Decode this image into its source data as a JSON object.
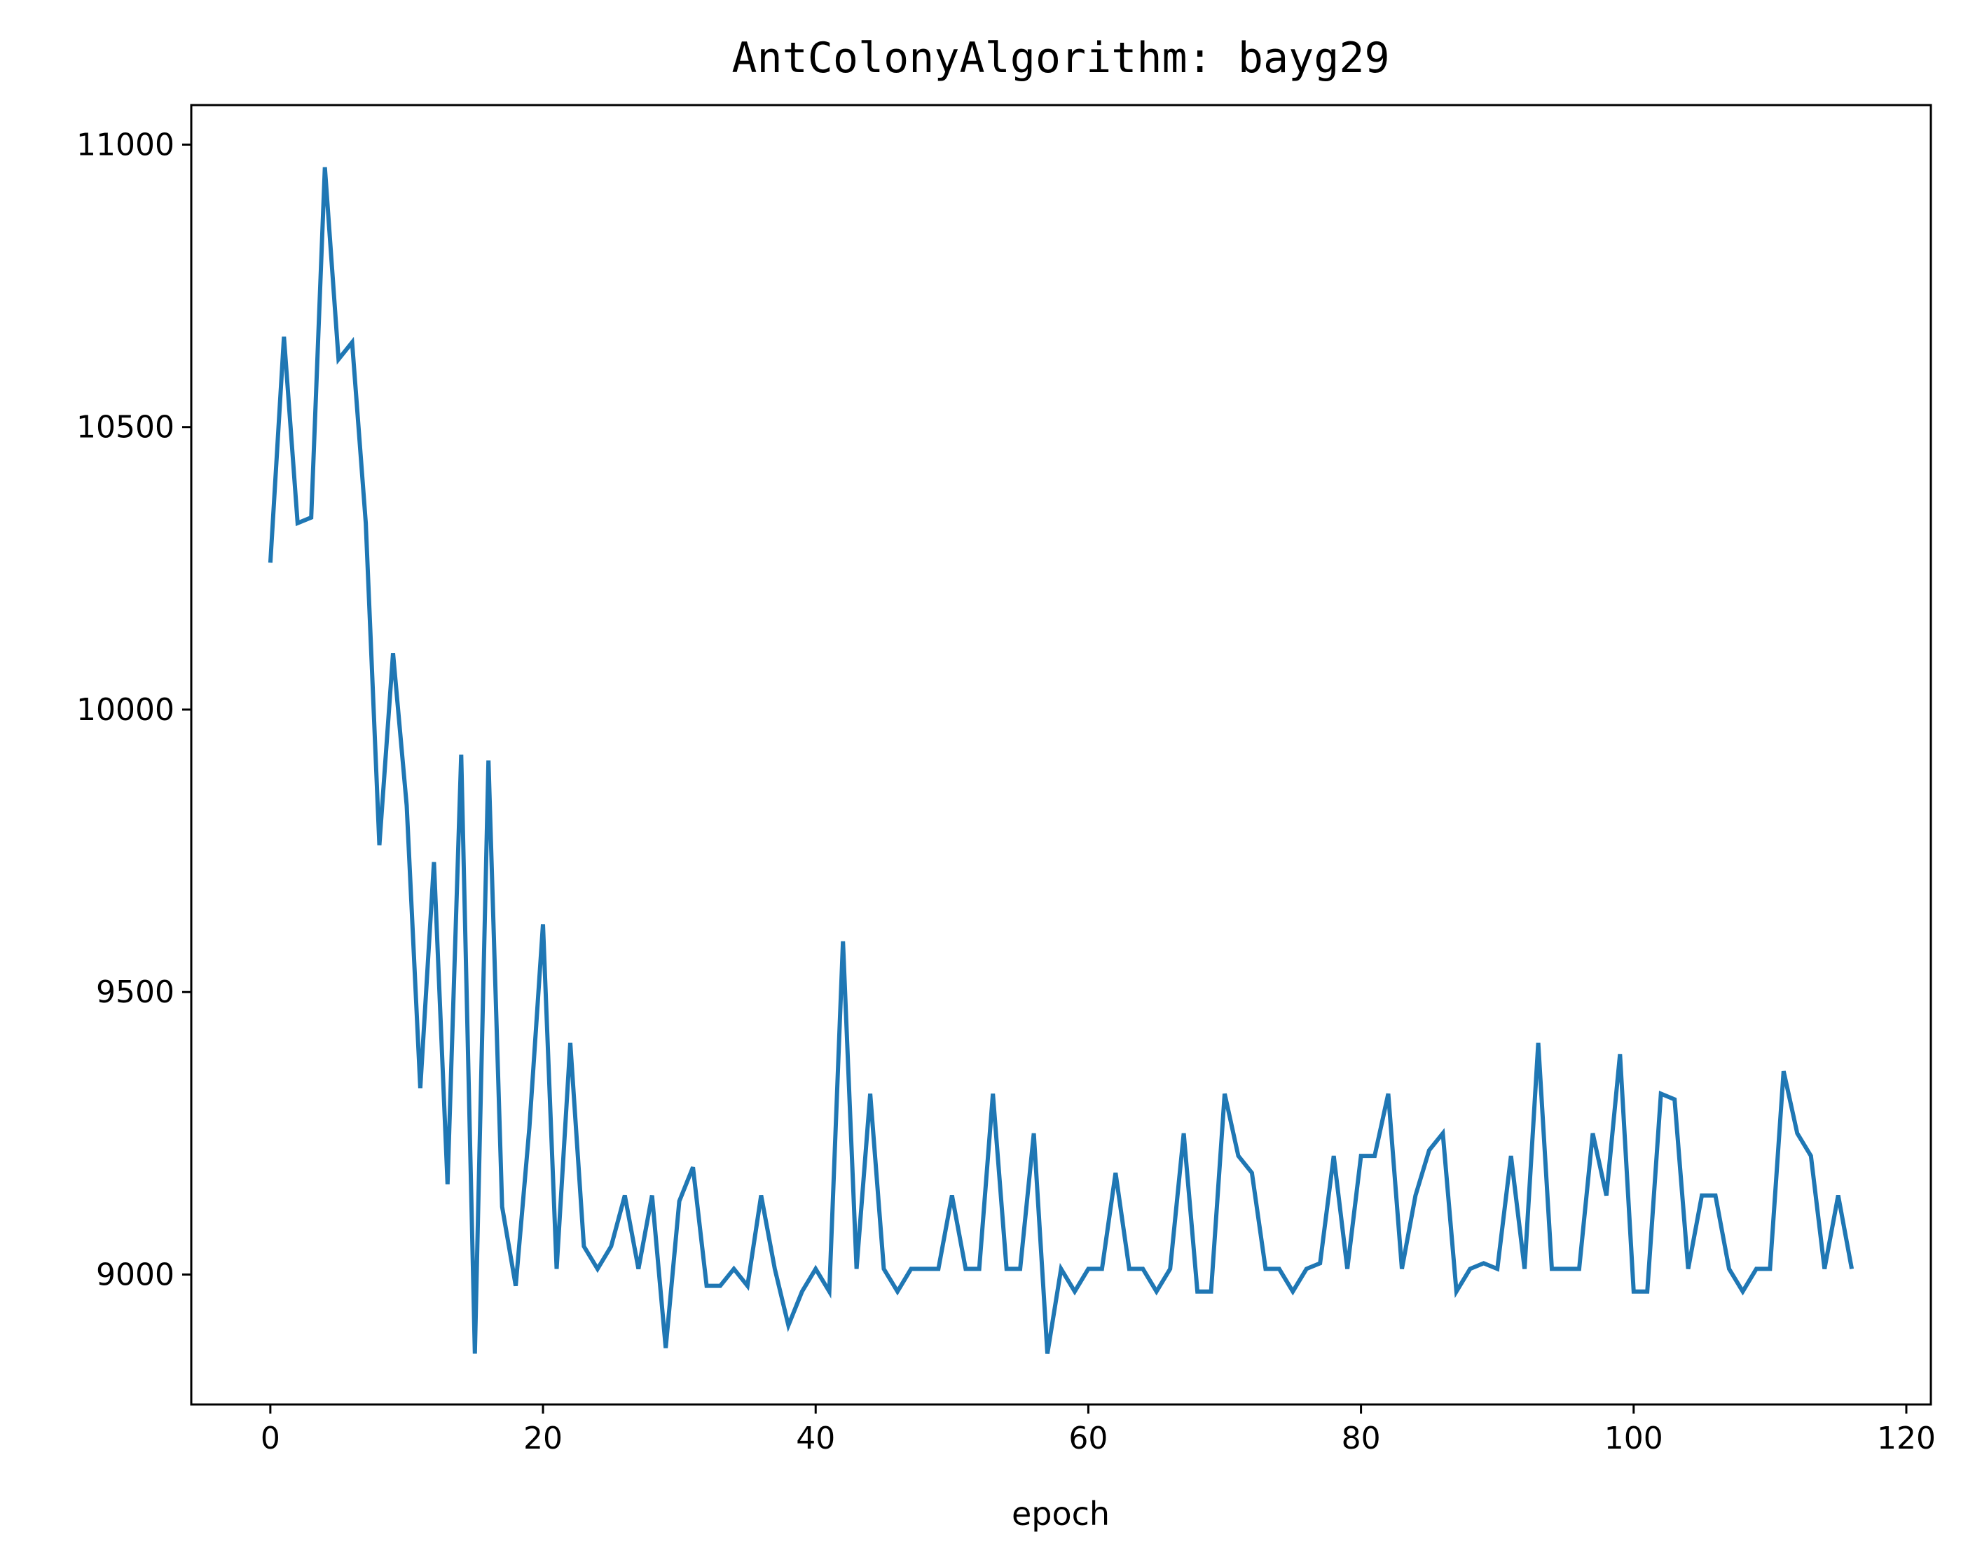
{
  "chart_data": {
    "type": "line",
    "title": "AntColonyAlgorithm: bayg29",
    "xlabel": "epoch",
    "ylabel": "",
    "xlim": [
      -5.8,
      121.8
    ],
    "ylim": [
      8770,
      11070
    ],
    "xticks": [
      0,
      20,
      40,
      60,
      80,
      100,
      120
    ],
    "yticks": [
      9000,
      9500,
      10000,
      10500,
      11000
    ],
    "xtick_labels": [
      "0",
      "20",
      "40",
      "60",
      "80",
      "100",
      "120"
    ],
    "ytick_labels": [
      "9000",
      "9500",
      "10000",
      "10500",
      "11000"
    ],
    "grid": false,
    "legend": "none",
    "line_color": "#1f77b4",
    "x": [
      0,
      1,
      2,
      3,
      4,
      5,
      6,
      7,
      8,
      9,
      10,
      11,
      12,
      13,
      14,
      15,
      16,
      17,
      18,
      19,
      20,
      21,
      22,
      23,
      24,
      25,
      26,
      27,
      28,
      29,
      30,
      31,
      32,
      33,
      34,
      35,
      36,
      37,
      38,
      39,
      40,
      41,
      42,
      43,
      44,
      45,
      46,
      47,
      48,
      49,
      50,
      51,
      52,
      53,
      54,
      55,
      56,
      57,
      58,
      59,
      60,
      61,
      62,
      63,
      64,
      65,
      66,
      67,
      68,
      69,
      70,
      71,
      72,
      73,
      74,
      75,
      76,
      77,
      78,
      79,
      80,
      81,
      82,
      83,
      84,
      85,
      86,
      87,
      88,
      89,
      90,
      91,
      92,
      93,
      94,
      95,
      96,
      97,
      98,
      99,
      100,
      101,
      102,
      103,
      104,
      105,
      106,
      107,
      108,
      109,
      110,
      111,
      112,
      113,
      114,
      115,
      116
    ],
    "series": [
      {
        "values": [
          10260,
          10660,
          10330,
          10340,
          10960,
          10620,
          10650,
          10330,
          9760,
          10100,
          9830,
          9330,
          9730,
          9160,
          9920,
          8860,
          9910,
          9120,
          8980,
          9260,
          9620,
          9010,
          9410,
          9050,
          9010,
          9050,
          9140,
          9010,
          9140,
          8870,
          9130,
          9190,
          8980,
          8980,
          9010,
          8980,
          9140,
          9010,
          8910,
          8970,
          9010,
          8970,
          9590,
          9010,
          9320,
          9010,
          8970,
          9010,
          9010,
          9010,
          9140,
          9010,
          9010,
          9320,
          9010,
          9010,
          9250,
          8860,
          9010,
          8970,
          9010,
          9010,
          9180,
          9010,
          9010,
          8970,
          9010,
          9250,
          8970,
          8970,
          9320,
          9210,
          9180,
          9010,
          9010,
          8970,
          9010,
          9020,
          9210,
          9010,
          9210,
          9210,
          9320,
          9010,
          9140,
          9220,
          9250,
          8970,
          9010,
          9020,
          9010,
          9210,
          9010,
          9410,
          9010,
          9010,
          9010,
          9250,
          9140,
          9390,
          8970,
          8970,
          9320,
          9310,
          9010,
          9140,
          9140,
          9010,
          8970,
          9010,
          9010,
          9360,
          9250,
          9210,
          9010,
          9140,
          9010
        ]
      }
    ]
  }
}
